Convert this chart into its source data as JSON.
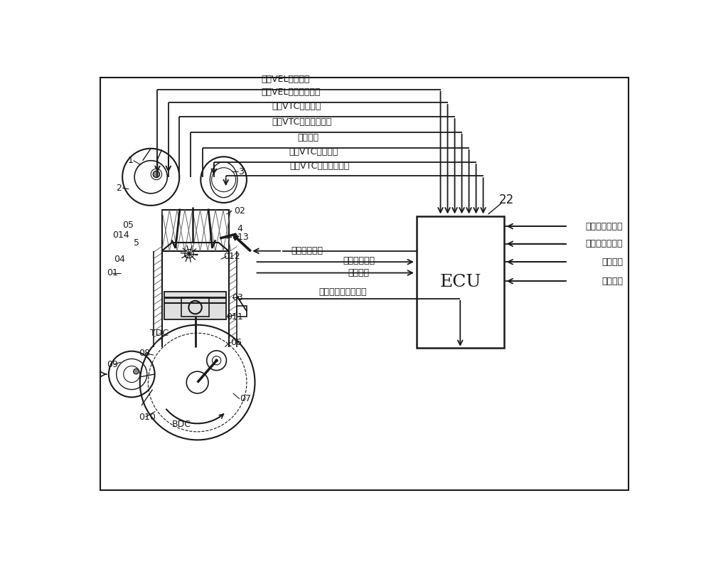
{
  "bg_color": "#ffffff",
  "line_color": "#1a1a1a",
  "text_color": "#1a1a1a",
  "fig_width": 10.0,
  "fig_height": 7.9,
  "top_labels": [
    "排气VEL控制信号",
    "排气VEL实际位置信号",
    "排气VTC控制信号",
    "排气VTC实际位置信号",
    "点火信号",
    "进气VTC控制信号",
    "进气VTC实际位置信号"
  ],
  "mid_label1": "燃料喷射信号",
  "mid_label2": "曲柄转角信号",
  "mid_label3": "制动信号",
  "bottom_label": "发动机主体温度信号",
  "right_labels": [
    "发动机转数信号",
    "加速器开度信号",
    "车速信号",
    "齿轮位置"
  ],
  "ecu_label": "ECU",
  "ecu_num": "22"
}
